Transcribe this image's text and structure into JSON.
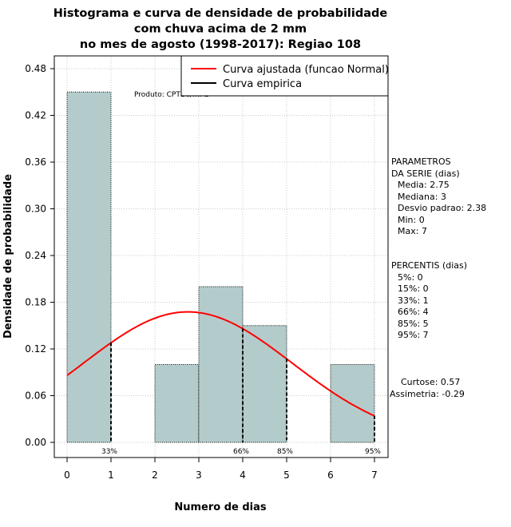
{
  "chart_data": {
    "type": "bar",
    "title_lines": [
      "Histograma e curva de densidade de probabilidade",
      "com chuva acima de 2 mm",
      "no mes de agosto (1998-2017): Regiao 108"
    ],
    "xlabel": "Numero de dias",
    "ylabel": "Densidade de probabilidade",
    "xlim": [
      -0.2,
      7.2
    ],
    "ylim": [
      0,
      0.48
    ],
    "x_ticks": [
      "0",
      "1",
      "2",
      "3",
      "4",
      "5",
      "6",
      "7"
    ],
    "y_ticks": [
      "0.00",
      "0.06",
      "0.12",
      "0.18",
      "0.24",
      "0.30",
      "0.36",
      "0.42",
      "0.48"
    ],
    "bins": [
      {
        "start": 0,
        "end": 1,
        "density": 0.45
      },
      {
        "start": 1,
        "end": 2,
        "density": 0.0
      },
      {
        "start": 2,
        "end": 3,
        "density": 0.1
      },
      {
        "start": 3,
        "end": 4,
        "density": 0.2
      },
      {
        "start": 4,
        "end": 5,
        "density": 0.15
      },
      {
        "start": 5,
        "end": 6,
        "density": 0.0
      },
      {
        "start": 6,
        "end": 7,
        "density": 0.1
      }
    ],
    "normal_curve": {
      "name": "Curva ajustada (funcao Normal)",
      "mean": 2.75,
      "sd": 2.38,
      "color": "#ff0000"
    },
    "empirical_curve": {
      "name": "Curva empirica",
      "color": "#000000"
    },
    "percentile_markers": [
      {
        "x": 1,
        "label": "33%"
      },
      {
        "x": 4,
        "label": "66%"
      },
      {
        "x": 5,
        "label": "85%"
      },
      {
        "x": 7,
        "label": "95%"
      }
    ],
    "bar_color": "#b4cbcb",
    "credit": "Produto: CPTEC/INPE"
  },
  "stats": {
    "params_title_1": "PARAMETROS",
    "params_title_2": "DA SERIE (dias)",
    "media": "Media: 2.75",
    "mediana": "Mediana: 3",
    "desvio": "Desvio padrao: 2.38",
    "min": "Min: 0",
    "max": "Max: 7",
    "perc_title": "PERCENTIS (dias)",
    "p5": "5%: 0",
    "p15": "15%: 0",
    "p33": "33%: 1",
    "p66": "66%: 4",
    "p85": "85%: 5",
    "p95": "95%: 7",
    "curtose": "Curtose: 0.57",
    "assimetria": "Assimetria: -0.29"
  }
}
